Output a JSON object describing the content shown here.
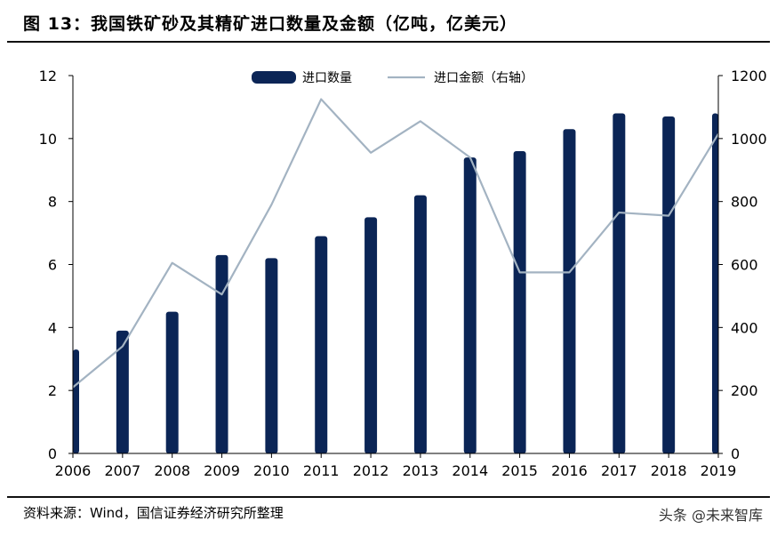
{
  "header": {
    "title": "图 13：我国铁矿砂及其精矿进口数量及金额（亿吨，亿美元）"
  },
  "footer": {
    "source": "资料来源：Wind，国信证券经济研究所整理",
    "watermark": "头条 @未来智库"
  },
  "colors": {
    "bar": "#0b2556",
    "line": "#a3b3c2",
    "axis": "#000000",
    "text": "#000000"
  },
  "chart_data": {
    "type": "bar",
    "categories": [
      "2006",
      "2007",
      "2008",
      "2009",
      "2010",
      "2011",
      "2012",
      "2013",
      "2014",
      "2015",
      "2016",
      "2017",
      "2018",
      "2019"
    ],
    "series": [
      {
        "name": "进口数量",
        "type": "bar",
        "axis": "left",
        "values": [
          3.3,
          3.9,
          4.5,
          6.3,
          6.2,
          6.9,
          7.5,
          8.2,
          9.4,
          9.6,
          10.3,
          10.8,
          10.7,
          10.8
        ]
      },
      {
        "name": "进口金额（右轴）",
        "type": "line",
        "axis": "right",
        "values": [
          210,
          340,
          605,
          505,
          790,
          1125,
          955,
          1055,
          940,
          575,
          575,
          765,
          755,
          1015
        ]
      }
    ],
    "ylim_left": [
      0,
      12
    ],
    "ylim_right": [
      0,
      1200
    ],
    "yticks_left": [
      "0",
      "2",
      "4",
      "6",
      "8",
      "10",
      "12"
    ],
    "yticks_right": [
      "0",
      "200",
      "400",
      "600",
      "800",
      "1000",
      "1200"
    ],
    "legend_position": "top-center",
    "grid": false
  }
}
